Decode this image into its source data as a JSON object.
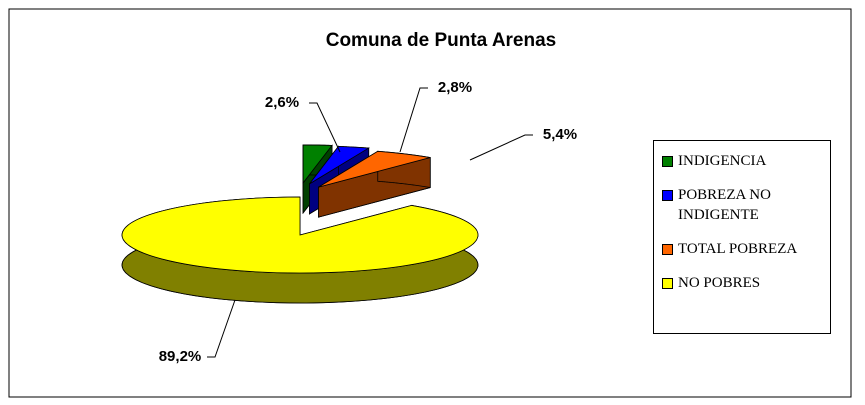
{
  "chart_data": {
    "type": "pie",
    "title": "Comuna de Punta Arenas",
    "categories": [
      "INDIGENCIA",
      "POBREZA NO INDIGENTE",
      "TOTAL POBREZA",
      "NO POBRES"
    ],
    "values": [
      2.6,
      2.8,
      5.4,
      89.2
    ],
    "value_labels": [
      "2,6%",
      "2,8%",
      "5,4%",
      "89,2%"
    ],
    "colors": [
      "#008000",
      "#0000ff",
      "#ff6600",
      "#ffff00"
    ],
    "legend": "right"
  }
}
